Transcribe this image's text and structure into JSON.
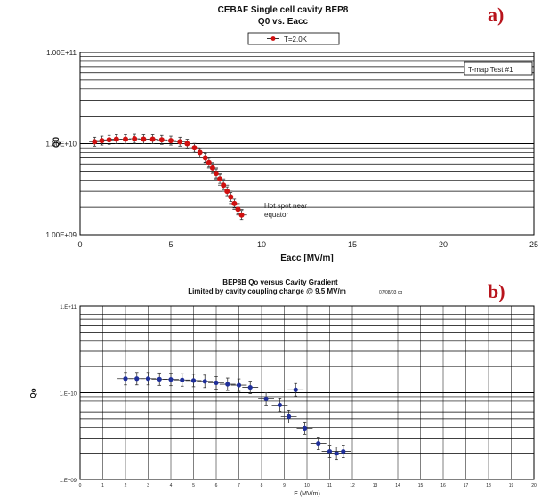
{
  "colors": {
    "panel_letter": "#b8141c",
    "series_a": "#d01010",
    "series_b": "#1f2f9a",
    "grid": "#000000"
  },
  "chart_data": [
    {
      "type": "scatter",
      "panel_label": "a)",
      "title": "CEBAF  Single cell cavity BEP8",
      "subtitle": "Q0 vs. Eacc",
      "xlabel": "Eacc [MV/m]",
      "ylabel": "Q0",
      "xlim": [
        0,
        25
      ],
      "ylim": [
        1000000000,
        100000000000
      ],
      "yscale": "log",
      "grid": "horizontal",
      "x_ticks": [
        "0",
        "5",
        "10",
        "15",
        "20",
        "25"
      ],
      "y_ticks": [
        "1.00E+09",
        "1.00E+10",
        "1.00E+11"
      ],
      "legend_position": "top-center",
      "series": [
        {
          "name": "T=2.0K",
          "x": [
            0.8,
            1.2,
            1.6,
            2.0,
            2.5,
            3.0,
            3.5,
            4.0,
            4.5,
            5.0,
            5.5,
            5.9,
            6.3,
            6.6,
            6.9,
            7.1,
            7.3,
            7.5,
            7.7,
            7.9,
            8.1,
            8.3,
            8.5,
            8.7,
            8.9
          ],
          "y": [
            10500000000.0,
            10800000000.0,
            11000000000.0,
            11200000000.0,
            11200000000.0,
            11300000000.0,
            11200000000.0,
            11200000000.0,
            11000000000.0,
            10800000000.0,
            10500000000.0,
            10000000000.0,
            9000000000.0,
            8000000000.0,
            7000000000.0,
            6200000000.0,
            5400000000.0,
            4700000000.0,
            4100000000.0,
            3500000000.0,
            3000000000.0,
            2600000000.0,
            2200000000.0,
            1900000000.0,
            1650000000.0
          ],
          "xerr": 0.3
        }
      ],
      "annotations": [
        {
          "text": "T-map Test #1",
          "x": 19.5,
          "y": 78000000000.0,
          "boxed": true
        },
        {
          "text": "Hot spot near",
          "x": 10.2,
          "y": 2400000000.0
        },
        {
          "text": "equator",
          "x": 10.2,
          "y": 1850000000.0
        }
      ]
    },
    {
      "type": "scatter",
      "panel_label": "b)",
      "title": "BEP8B Qo versus Cavity Gradient",
      "subtitle": "Limited by cavity coupling change @ 9.5 MV/m",
      "date_note": "07/08/03 cg",
      "xlabel": "E (MV/m)",
      "ylabel": "Qo",
      "xlim": [
        0,
        20
      ],
      "ylim": [
        1000000000,
        100000000000
      ],
      "yscale": "log",
      "grid": "both",
      "x_ticks": [
        "0",
        "1",
        "2",
        "3",
        "4",
        "5",
        "6",
        "7",
        "8",
        "9",
        "10",
        "11",
        "12",
        "13",
        "14",
        "15",
        "16",
        "17",
        "18",
        "19",
        "20"
      ],
      "y_ticks": [
        "1.E+09",
        "1.E+10",
        "1.E+11"
      ],
      "series": [
        {
          "x": [
            2.0,
            2.5,
            3.0,
            3.5,
            4.0,
            4.5,
            5.0,
            5.5,
            6.0,
            6.5,
            7.0,
            7.5,
            8.2,
            8.8,
            9.2,
            9.5,
            9.9,
            10.5,
            11.0,
            11.3,
            11.6
          ],
          "y": [
            14500000000.0,
            14500000000.0,
            14500000000.0,
            14300000000.0,
            14200000000.0,
            14000000000.0,
            13800000000.0,
            13500000000.0,
            13000000000.0,
            12500000000.0,
            12200000000.0,
            11500000000.0,
            8500000000.0,
            7200000000.0,
            5300000000.0,
            10800000000.0,
            3900000000.0,
            2600000000.0,
            2100000000.0,
            2000000000.0,
            2100000000.0
          ],
          "xerr": 0.35
        }
      ]
    }
  ]
}
